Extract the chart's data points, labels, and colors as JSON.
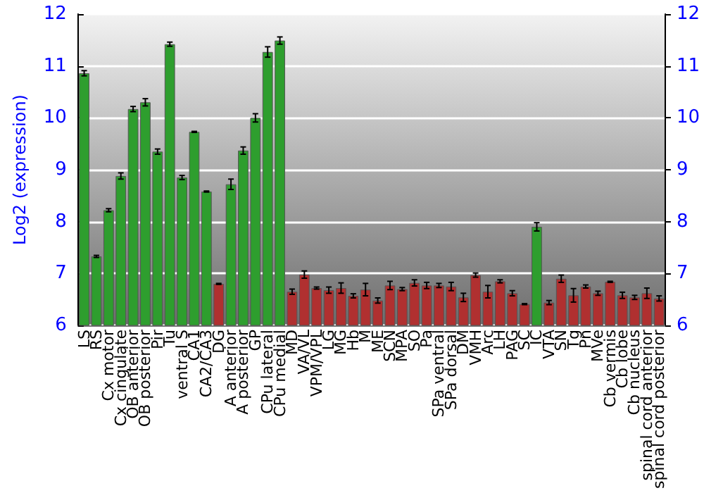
{
  "chart_data": {
    "type": "bar",
    "ylabel": "Log2 (expression)",
    "categories": [
      "LS",
      "RS",
      "Cx motor",
      "Cx cingulate",
      "OB anterior",
      "OB posterior",
      "Pir",
      "Tu",
      "ventral S",
      "CA1",
      "CA2/CA3",
      "DG",
      "A anterior",
      "A posterior",
      "GP",
      "CPu lateral",
      "CPu medial",
      "MD",
      "VA/VL",
      "VPM/VPL",
      "LG",
      "MG",
      "Hb",
      "M",
      "ME",
      "SCN",
      "MPA",
      "SO",
      "Pa",
      "SPa ventral",
      "SPa dorsal",
      "DM",
      "VMH",
      "Arc",
      "LH",
      "PAG",
      "SC",
      "IC",
      "VTA",
      "SN",
      "Tg",
      "Pn",
      "MVe",
      "Cb vermis",
      "Cb lobe",
      "Cb nucleus",
      "spinal cord anterior",
      "spinal cord posterior"
    ],
    "values": [
      10.86,
      7.33,
      8.22,
      8.88,
      10.17,
      10.3,
      9.35,
      11.42,
      8.85,
      9.73,
      8.58,
      6.8,
      8.72,
      9.37,
      10.0,
      11.27,
      11.49,
      6.65,
      6.98,
      6.72,
      6.68,
      6.72,
      6.57,
      6.69,
      6.48,
      6.77,
      6.7,
      6.82,
      6.77,
      6.77,
      6.75,
      6.54,
      6.97,
      6.65,
      6.85,
      6.62,
      6.41,
      7.9,
      6.44,
      6.9,
      6.58,
      6.75,
      6.62,
      6.84,
      6.58,
      6.54,
      6.62,
      6.52
    ],
    "errors": [
      0.05,
      0.02,
      0.03,
      0.06,
      0.05,
      0.07,
      0.05,
      0.04,
      0.04,
      0.01,
      0.01,
      0.01,
      0.1,
      0.07,
      0.08,
      0.1,
      0.07,
      0.05,
      0.07,
      0.02,
      0.06,
      0.1,
      0.04,
      0.12,
      0.05,
      0.08,
      0.03,
      0.06,
      0.06,
      0.04,
      0.08,
      0.08,
      0.04,
      0.12,
      0.03,
      0.05,
      0.01,
      0.08,
      0.04,
      0.07,
      0.13,
      0.03,
      0.04,
      0.01,
      0.06,
      0.04,
      0.1,
      0.05
    ],
    "colors": [
      "#2e9e2e",
      "#2e9e2e",
      "#2e9e2e",
      "#2e9e2e",
      "#2e9e2e",
      "#2e9e2e",
      "#2e9e2e",
      "#2e9e2e",
      "#2e9e2e",
      "#2e9e2e",
      "#2e9e2e",
      "#b03030",
      "#2e9e2e",
      "#2e9e2e",
      "#2e9e2e",
      "#2e9e2e",
      "#2e9e2e",
      "#b03030",
      "#b03030",
      "#b03030",
      "#b03030",
      "#b03030",
      "#b03030",
      "#b03030",
      "#b03030",
      "#b03030",
      "#b03030",
      "#b03030",
      "#b03030",
      "#b03030",
      "#b03030",
      "#b03030",
      "#b03030",
      "#b03030",
      "#b03030",
      "#b03030",
      "#b03030",
      "#2e9e2e",
      "#b03030",
      "#b03030",
      "#b03030",
      "#b03030",
      "#b03030",
      "#b03030",
      "#b03030",
      "#b03030",
      "#b03030",
      "#b03030"
    ],
    "ylim": [
      6,
      12
    ],
    "yticks": [
      6,
      7,
      8,
      9,
      10,
      11,
      12
    ],
    "y2lim": [
      6,
      12
    ],
    "y2ticks": [
      6,
      7,
      8,
      9,
      10,
      11,
      12
    ],
    "grid": "y"
  }
}
